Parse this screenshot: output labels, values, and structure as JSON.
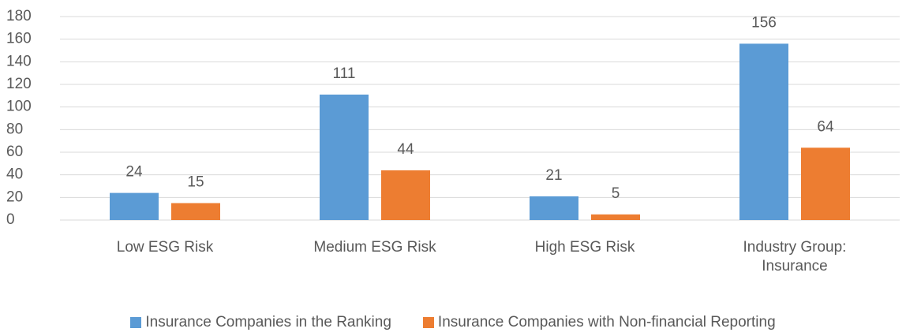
{
  "chart_data": {
    "type": "bar",
    "categories": [
      "Low ESG Risk",
      "Medium ESG Risk",
      "High ESG Risk",
      "Industry Group: Insurance"
    ],
    "series": [
      {
        "name": "Insurance Companies in the Ranking",
        "color": "#5b9bd5",
        "values": [
          24,
          111,
          21,
          156
        ]
      },
      {
        "name": "Insurance Companies with Non-financial Reporting",
        "color": "#ed7d31",
        "values": [
          15,
          44,
          5,
          64
        ]
      }
    ],
    "ylim": [
      0,
      180
    ],
    "yticks": [
      0,
      20,
      40,
      60,
      80,
      100,
      120,
      140,
      160,
      180
    ],
    "grid": true,
    "legend": "bottom"
  }
}
